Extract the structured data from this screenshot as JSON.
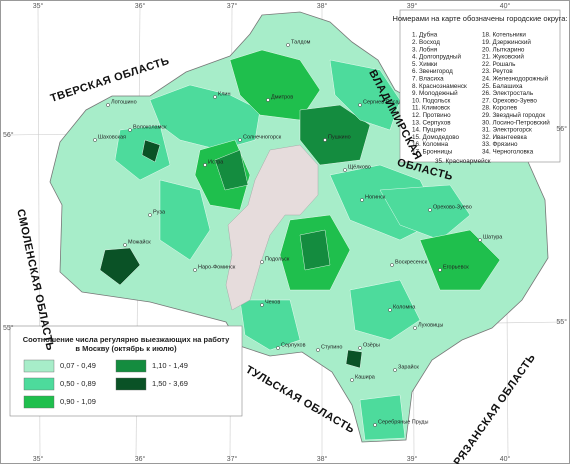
{
  "map": {
    "coordinates": {
      "longitudes": [
        "35°",
        "36°",
        "37°",
        "38°",
        "39°",
        "40°"
      ],
      "latitudes": [
        "56°",
        "55°"
      ]
    },
    "regions": [
      "ТВЕРСКАЯ ОБЛАСТЬ",
      "ВЛАДИМИРСКАЯ",
      "ОБЛАСТЬ",
      "СМОЛЕНСКАЯ ОБЛАСТЬ",
      "ТУЛЬСКАЯ ОБЛАСТЬ",
      "РЯЗАНСКАЯ ОБЛАСТЬ"
    ],
    "cities": [
      "Талдом",
      "Дмитров",
      "Клин",
      "Сергиев Посад",
      "Лотошино",
      "Шаховская",
      "Волоколамск",
      "Истра",
      "Руза",
      "Можайск",
      "Наро-Фоминск",
      "Подольск",
      "Чехов",
      "Серпухов",
      "Ступино",
      "Кашира",
      "Озёры",
      "Зарайск",
      "Коломна",
      "Луховицы",
      "Воскресенск",
      "Егорьевск",
      "Шатура",
      "Орехово-Зуево",
      "Ногинск",
      "Щёлково",
      "Пушкино",
      "Солнечногорск",
      "Серебряные Пруды"
    ]
  },
  "districts_list": {
    "header": "Номерами на карте обозначены городские округа:",
    "items": [
      "1. Дубна",
      "2. Восход",
      "3. Лобня",
      "4. Долгопрудный",
      "5. Химки",
      "6. Звенигород",
      "7. Власиха",
      "8. Краснознаменск",
      "9. Молодежный",
      "10. Подольск",
      "11. Климовск",
      "12. Протвино",
      "13. Серпухов",
      "14. Пущино",
      "15. Домодедово",
      "16. Коломна",
      "17. Бронницы",
      "18. Котельники",
      "19. Дзержинский",
      "20. Лыткарино",
      "21. Жуковский",
      "22. Рошаль",
      "23. Реутов",
      "24. Железнодорожный",
      "25. Балашиха",
      "26. Электросталь",
      "27. Орехово-Зуево",
      "28. Королев",
      "29. Звездный городок",
      "30. Лосино-Петровский",
      "31. Электрогорск",
      "32. Ивантеевка",
      "33. Фрязино",
      "34. Черноголовка",
      "35. Красноармейск"
    ]
  },
  "legend": {
    "title": "Соотношение числа регулярно выезжающих на работу в Москву (октябрь к июлю)",
    "entries": [
      {
        "label": "0,07 - 0,49",
        "color": "#a7edc9"
      },
      {
        "label": "0,50 - 0,89",
        "color": "#4ddb9c"
      },
      {
        "label": "0,90 - 1,09",
        "color": "#1fbf4d"
      },
      {
        "label": "1,10 - 1,49",
        "color": "#148c3f"
      },
      {
        "label": "1,50 - 3,69",
        "color": "#0a5226"
      }
    ]
  }
}
